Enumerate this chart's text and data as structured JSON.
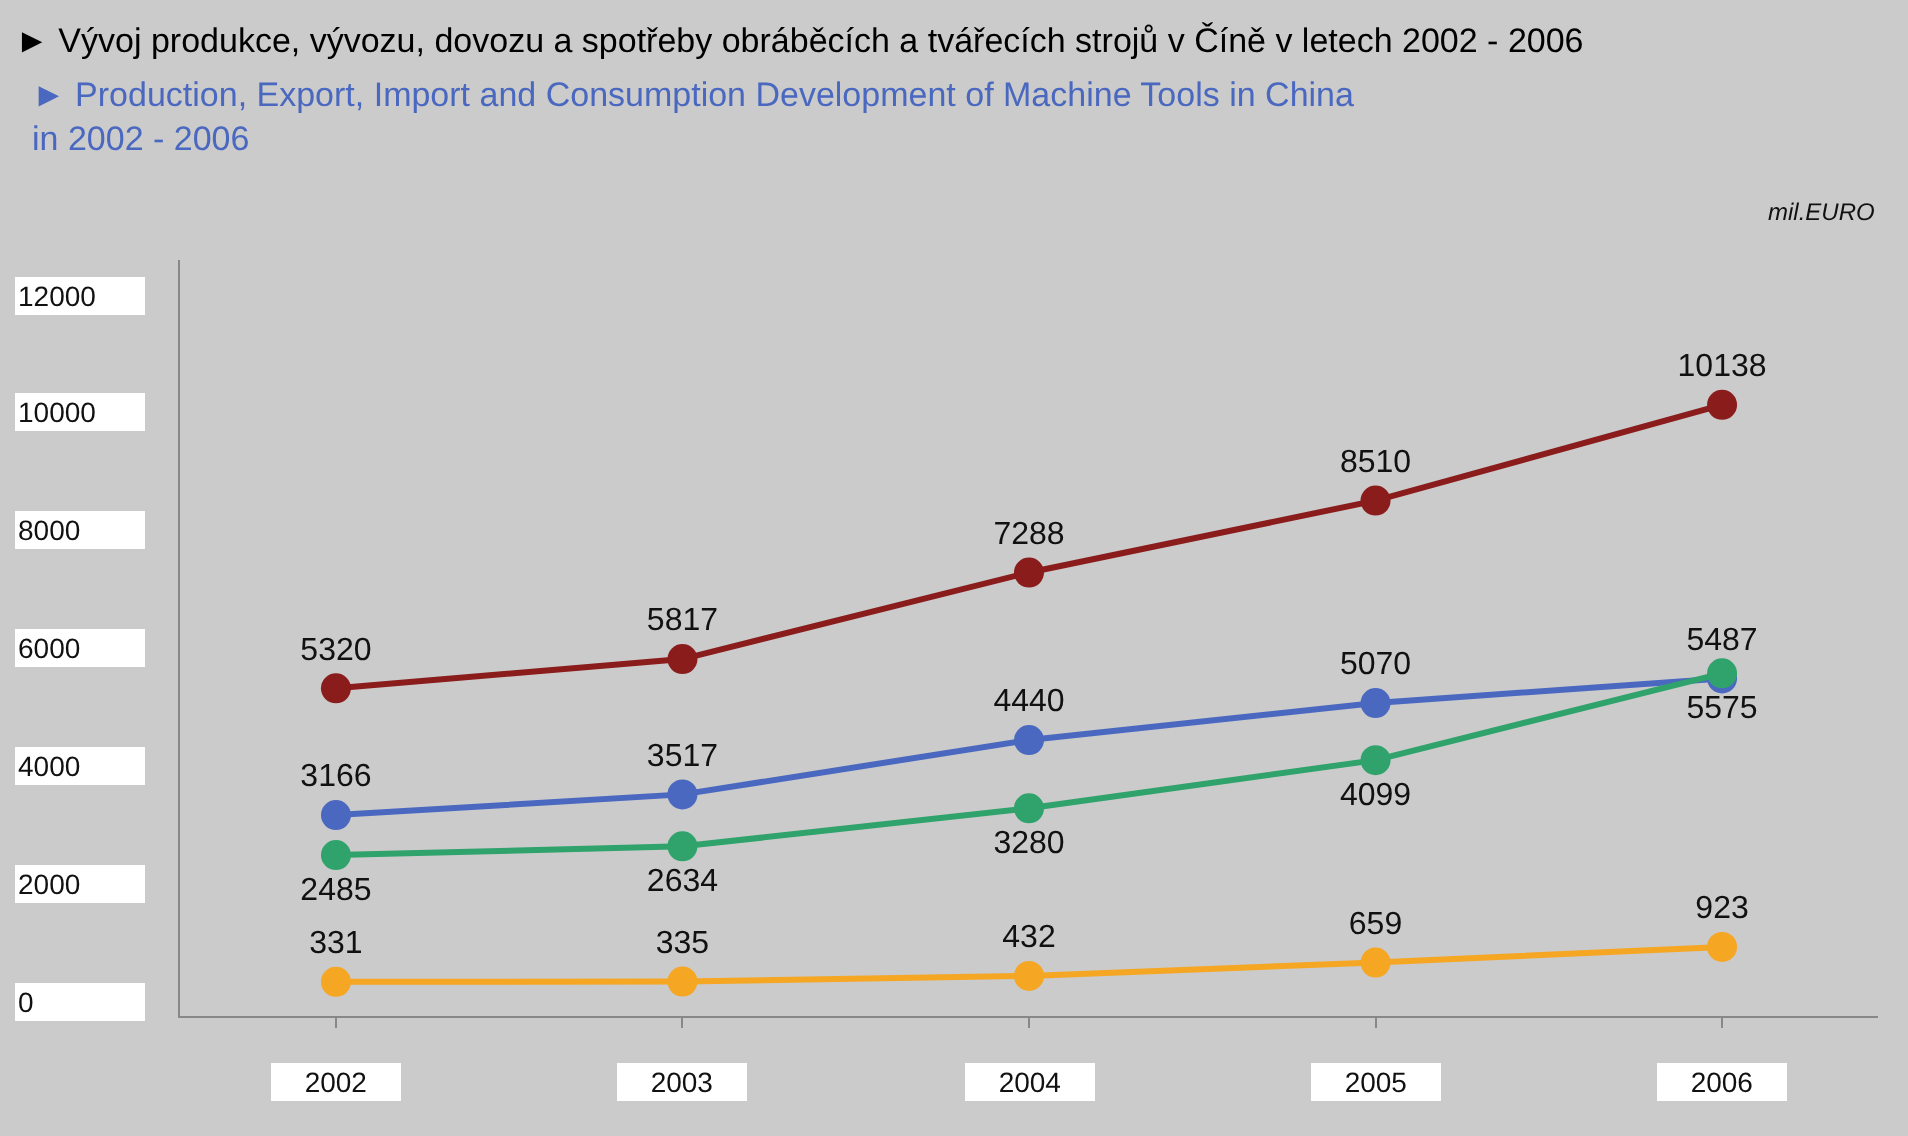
{
  "chart_data": {
    "type": "line",
    "title": "► Vývoj produkce, vývozu, dovozu a spotřeby obráběcích a tvářecích strojů v Číně v letech 2002 - 2006",
    "subtitle": "► Production, Export, Import and Consumption Development of Machine Tools in China\nin 2002 - 2006",
    "annotations": [
      "mil.EURO"
    ],
    "categories": [
      "2002",
      "2003",
      "2004",
      "2005",
      "2006"
    ],
    "series": [
      {
        "color": "#8b1c1c",
        "values": [
          5320,
          5817,
          7288,
          8510,
          10138
        ]
      },
      {
        "color": "#4a68c0",
        "values": [
          3166,
          3517,
          4440,
          5070,
          5487
        ]
      },
      {
        "color": "#2fa36b",
        "values": [
          2485,
          2634,
          3280,
          4099,
          5575
        ]
      },
      {
        "color": "#f5a623",
        "values": [
          331,
          335,
          432,
          659,
          923
        ]
      }
    ],
    "data_labels": true,
    "ylim": [
      -250,
      12600
    ],
    "yticks": [
      0,
      2000,
      4000,
      6000,
      8000,
      10000,
      12000
    ],
    "marker": "circle",
    "line_style": "solid",
    "grid": false
  }
}
